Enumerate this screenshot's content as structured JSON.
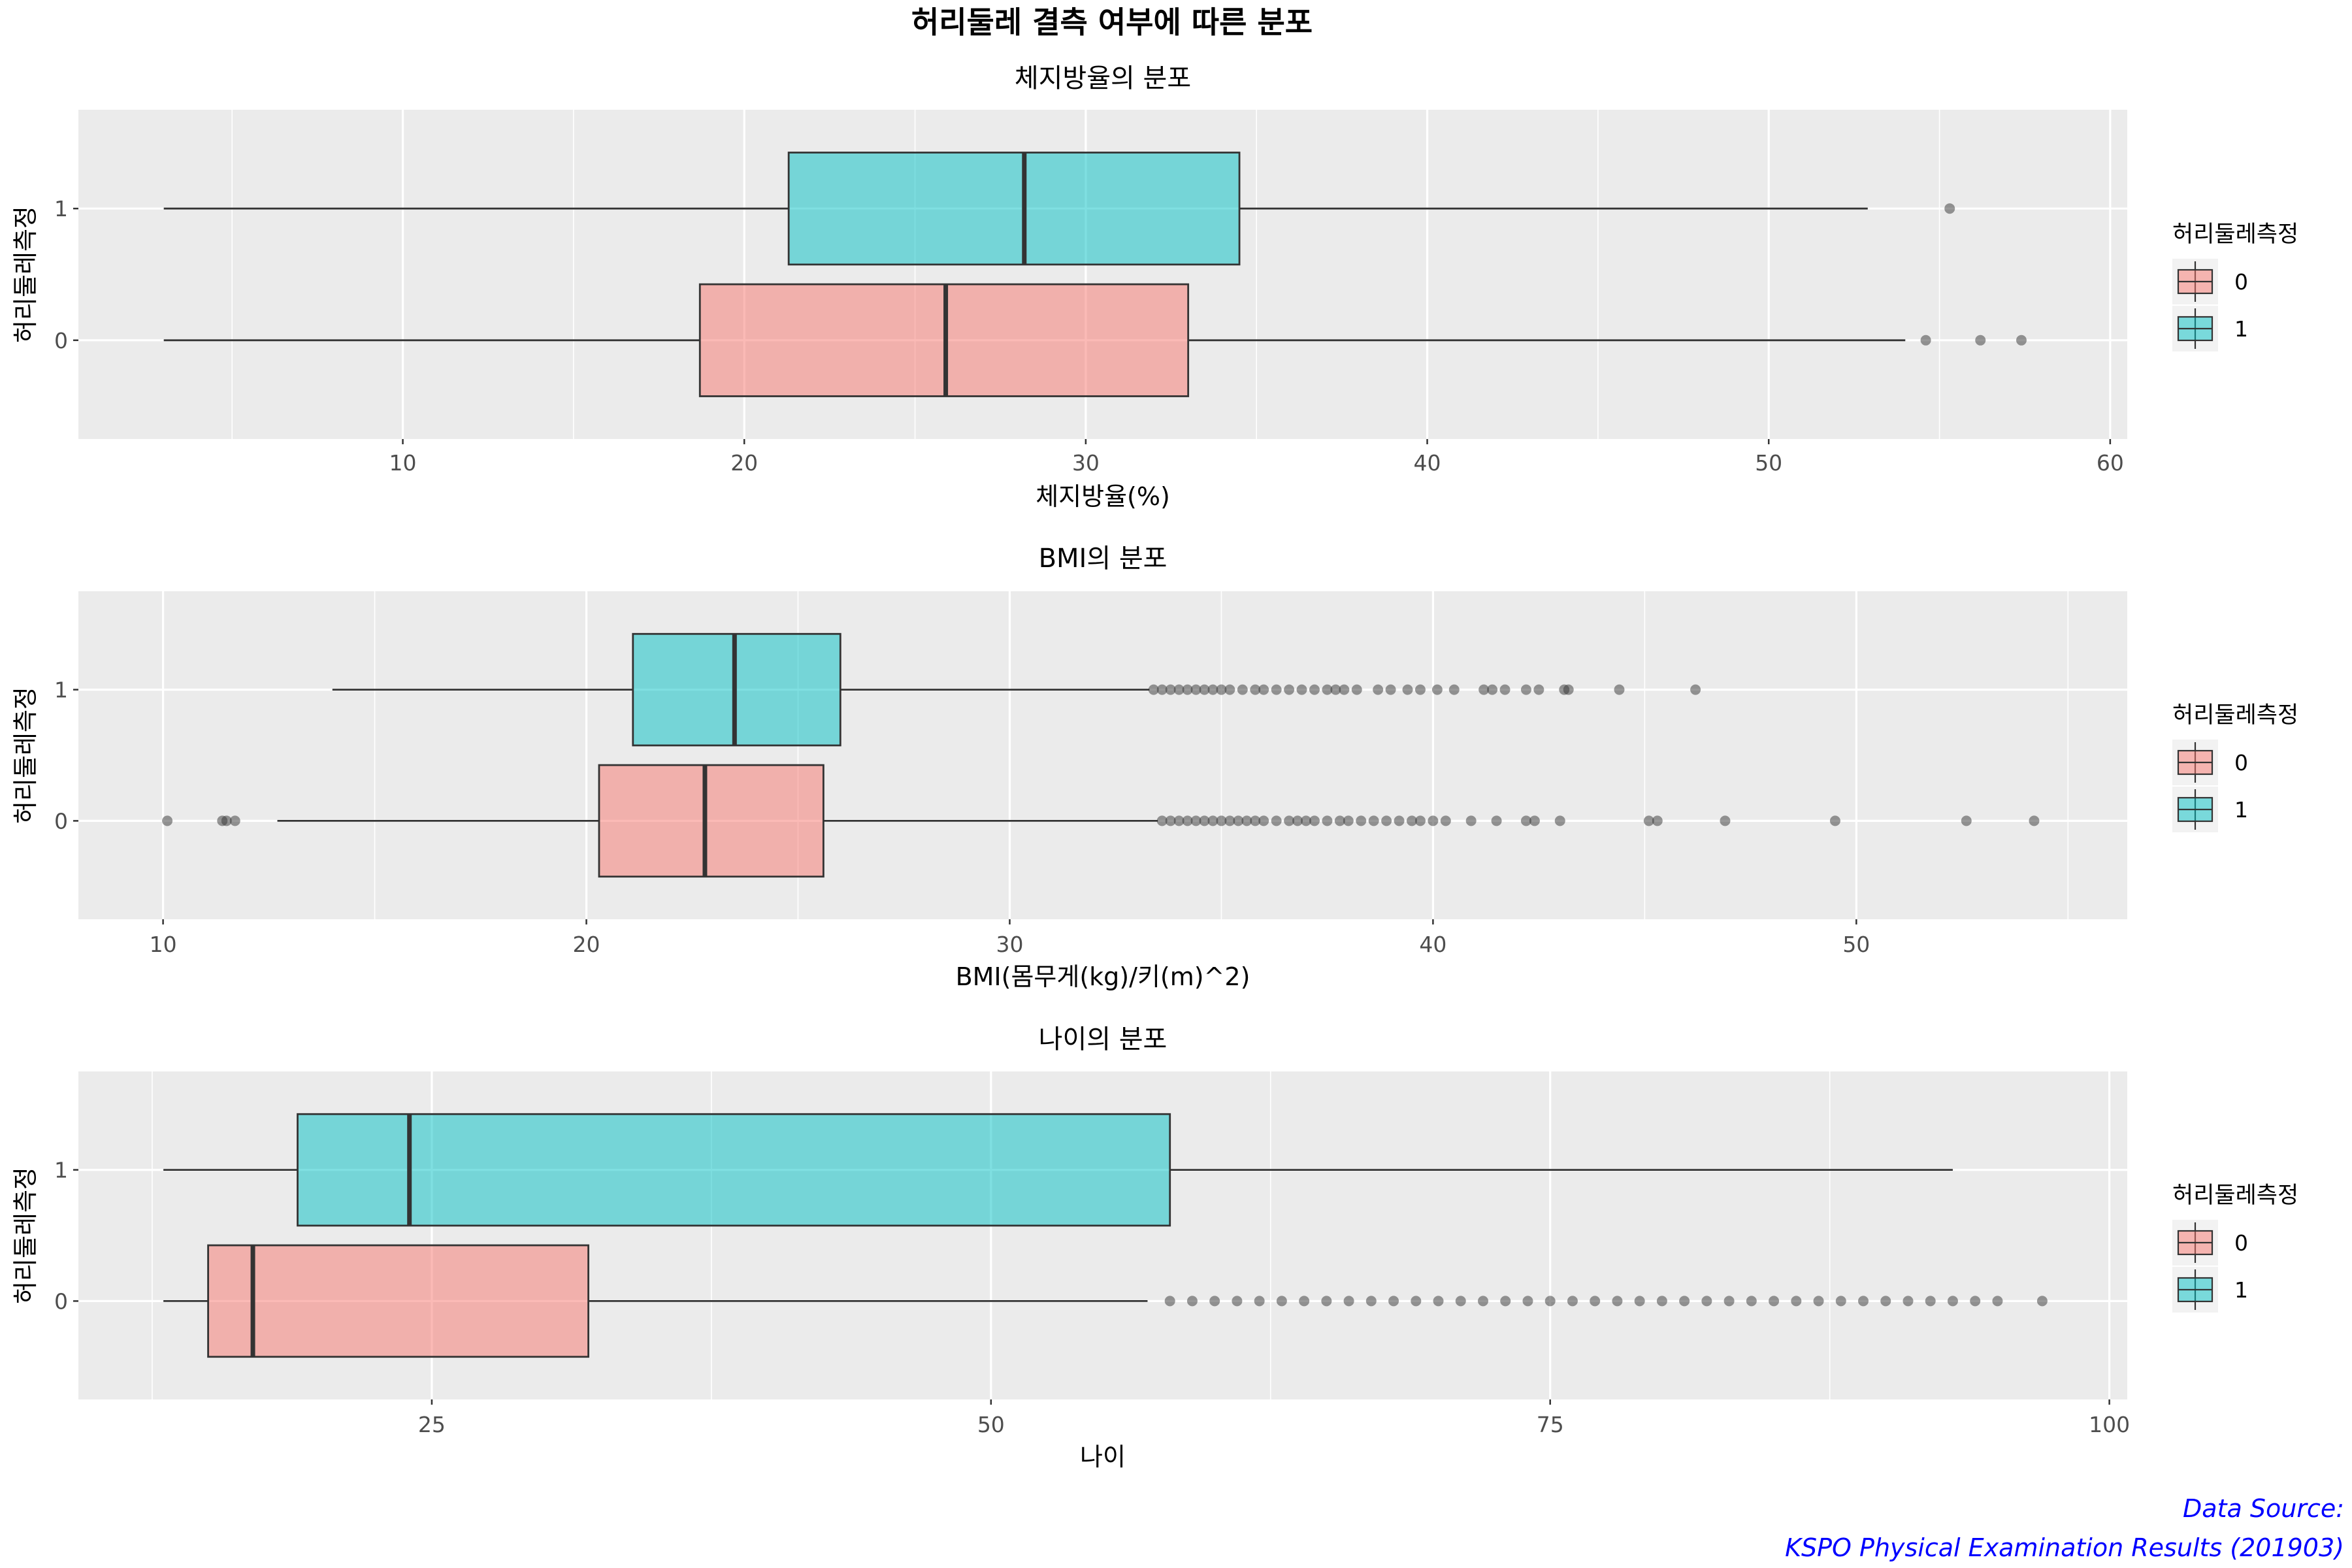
{
  "title": "허리둘레 결측 여부에 따른 분포",
  "caption": [
    "Data Source:",
    "KSPO Physical Examination Results (201903)"
  ],
  "colors": {
    "panel": "#ebebeb",
    "grid": "#ffffff",
    "group0": "#f8766d",
    "group1": "#00bfc4",
    "line": "#333333"
  },
  "chart_data": [
    {
      "type": "boxplot",
      "subtitle": "체지방율의 분포",
      "xlabel": "체지방율(%)",
      "ylabel": "허리둘레측정",
      "xlim": [
        0.5,
        60.5
      ],
      "x_ticks": [
        10,
        20,
        30,
        40,
        50,
        60
      ],
      "y_categories": [
        "0",
        "1"
      ],
      "legend": {
        "title": "허리둘레측정",
        "entries": [
          "0",
          "1"
        ],
        "position": "right"
      },
      "series": [
        {
          "group": "0",
          "whisker_low": 3.0,
          "q1": 18.7,
          "median": 25.9,
          "q3": 33.0,
          "whisker_high": 54.0,
          "outliers": [
            54.6,
            56.2,
            57.4
          ]
        },
        {
          "group": "1",
          "whisker_low": 3.0,
          "q1": 21.3,
          "median": 28.2,
          "q3": 34.5,
          "whisker_high": 52.9,
          "outliers": [
            55.3
          ]
        }
      ]
    },
    {
      "type": "boxplot",
      "subtitle": "BMI의 분포",
      "xlabel": "BMI(몸무게(kg)/키(m)^2)",
      "ylabel": "허리둘레측정",
      "xlim": [
        8.0,
        56.4
      ],
      "x_ticks": [
        10,
        20,
        30,
        40,
        50
      ],
      "y_categories": [
        "0",
        "1"
      ],
      "legend": {
        "title": "허리둘레측정",
        "entries": [
          "0",
          "1"
        ],
        "position": "right"
      },
      "series": [
        {
          "group": "0",
          "whisker_low": 12.7,
          "q1": 20.3,
          "median": 22.8,
          "q3": 25.6,
          "whisker_high": 33.5,
          "outliers": [
            10.1,
            11.4,
            11.5,
            11.7,
            33.6,
            33.8,
            34.0,
            34.2,
            34.4,
            34.6,
            34.8,
            35.0,
            35.2,
            35.4,
            35.6,
            35.8,
            36.0,
            36.3,
            36.6,
            36.8,
            37.0,
            37.2,
            37.5,
            37.8,
            38.0,
            38.3,
            38.6,
            38.9,
            39.2,
            39.5,
            39.7,
            40.0,
            40.3,
            40.9,
            41.5,
            42.2,
            42.4,
            43.0,
            45.1,
            45.3,
            46.9,
            49.5,
            52.6,
            54.2
          ]
        },
        {
          "group": "1",
          "whisker_low": 14.0,
          "q1": 21.1,
          "median": 23.5,
          "q3": 26.0,
          "whisker_high": 33.3,
          "outliers": [
            33.4,
            33.6,
            33.8,
            34.0,
            34.2,
            34.4,
            34.6,
            34.8,
            35.0,
            35.2,
            35.5,
            35.8,
            36.0,
            36.3,
            36.6,
            36.9,
            37.2,
            37.5,
            37.7,
            37.9,
            38.2,
            38.7,
            39.0,
            39.4,
            39.7,
            40.1,
            40.5,
            41.2,
            41.4,
            41.7,
            42.2,
            42.5,
            43.1,
            43.2,
            44.4,
            46.2
          ]
        }
      ]
    },
    {
      "type": "boxplot",
      "subtitle": "나이의 분포",
      "xlabel": "나이",
      "ylabel": "허리둘레측정",
      "xlim": [
        9.2,
        100.8
      ],
      "x_ticks": [
        25,
        50,
        75,
        100
      ],
      "y_categories": [
        "0",
        "1"
      ],
      "legend": {
        "title": "허리둘레측정",
        "entries": [
          "0",
          "1"
        ],
        "position": "right"
      },
      "series": [
        {
          "group": "0",
          "whisker_low": 13,
          "q1": 15,
          "median": 17,
          "q3": 32,
          "whisker_high": 57,
          "outliers": [
            58,
            59,
            60,
            61,
            62,
            63,
            64,
            65,
            66,
            67,
            68,
            69,
            70,
            71,
            72,
            73,
            74,
            75,
            76,
            77,
            78,
            79,
            80,
            81,
            82,
            83,
            84,
            85,
            86,
            87,
            88,
            89,
            90,
            91,
            92,
            93,
            94,
            95,
            97
          ]
        },
        {
          "group": "1",
          "whisker_low": 13,
          "q1": 19,
          "median": 24,
          "q3": 58,
          "whisker_high": 93,
          "outliers": []
        }
      ]
    }
  ]
}
